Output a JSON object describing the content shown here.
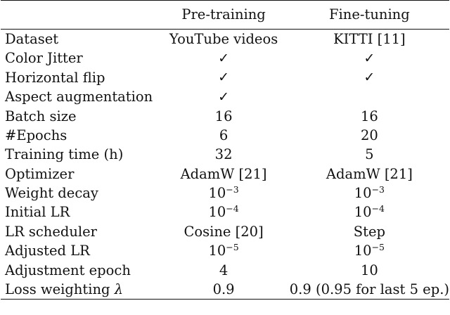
{
  "table": {
    "headers": {
      "blank": "",
      "pretraining": "Pre-training",
      "finetuning": "Fine-tuning"
    },
    "rows": [
      {
        "param": "Dataset",
        "pre": "YouTube videos",
        "fine": "KITTI [11]"
      },
      {
        "param": "Color Jitter",
        "pre": "✓",
        "fine": "✓"
      },
      {
        "param": "Horizontal flip",
        "pre": "✓",
        "fine": "✓"
      },
      {
        "param": "Aspect augmentation",
        "pre": "✓",
        "fine": ""
      },
      {
        "param": "Batch size",
        "pre": "16",
        "fine": "16"
      },
      {
        "param": "#Epochs",
        "pre": "6",
        "fine": "20"
      },
      {
        "param": "Training time (h)",
        "pre": "32",
        "fine": "5"
      },
      {
        "param": "Optimizer",
        "pre": "AdamW [21]",
        "fine": "AdamW [21]"
      },
      {
        "param": "Weight decay",
        "pre_base": "10",
        "pre_exp": "−3",
        "fine_base": "10",
        "fine_exp": "−3"
      },
      {
        "param": "Initial LR",
        "pre_base": "10",
        "pre_exp": "−4",
        "fine_base": "10",
        "fine_exp": "−4"
      },
      {
        "param": "LR scheduler",
        "pre": "Cosine [20]",
        "fine": "Step"
      },
      {
        "param": "Adjusted LR",
        "pre_base": "10",
        "pre_exp": "−5",
        "fine_base": "10",
        "fine_exp": "−5"
      },
      {
        "param": "Adjustment epoch",
        "pre": "4",
        "fine": "10"
      },
      {
        "param": "Loss weighting",
        "param_symbol": "λ",
        "pre": "0.9",
        "fine": "0.9 (0.95 for last 5 ep.)"
      }
    ]
  }
}
